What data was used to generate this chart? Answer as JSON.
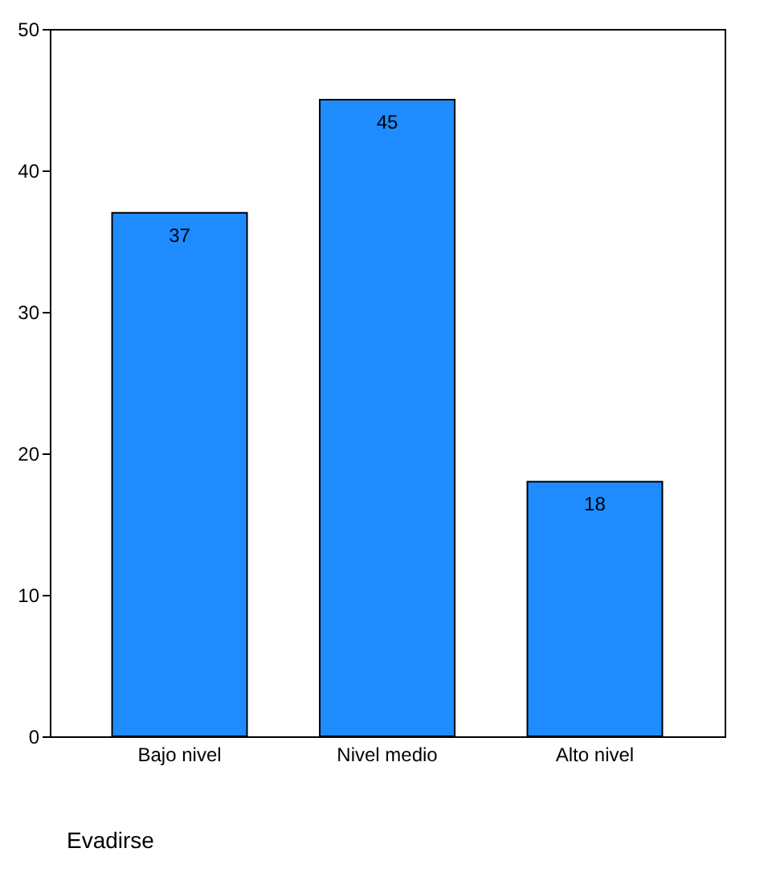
{
  "chart_data": {
    "type": "bar",
    "xlabel": "Evadirse",
    "categories": [
      "Bajo nivel",
      "Nivel medio",
      "Alto nivel"
    ],
    "values": [
      37,
      45,
      18
    ],
    "color": "#1e8cff",
    "ylim": [
      0,
      50
    ],
    "yticks": [
      0,
      10,
      20,
      30,
      40,
      50
    ],
    "grid": false,
    "data_labels": true
  }
}
